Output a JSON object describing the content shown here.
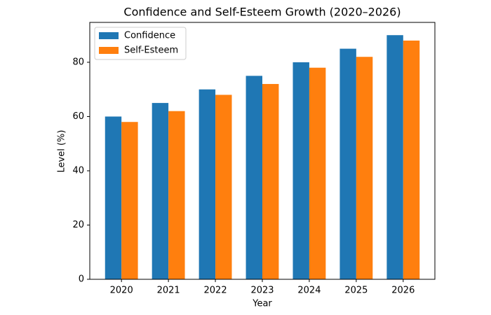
{
  "chart_data": {
    "type": "bar",
    "title": "Confidence and Self-Esteem Growth (2020–2026)",
    "x_label": "Year",
    "y_label": "Level (%)",
    "categories": [
      "2020",
      "2021",
      "2022",
      "2023",
      "2024",
      "2025",
      "2026"
    ],
    "series": [
      {
        "name": "Confidence",
        "color": "#1f77b4",
        "values": [
          60,
          65,
          70,
          75,
          80,
          85,
          90
        ]
      },
      {
        "name": "Self-Esteem",
        "color": "#ff7f0e",
        "values": [
          58,
          62,
          68,
          72,
          78,
          82,
          88
        ]
      }
    ],
    "ylim": [
      0,
      94.7
    ],
    "yticks": [
      0,
      20,
      40,
      60,
      80
    ],
    "grid": false,
    "legend": "upper left"
  }
}
